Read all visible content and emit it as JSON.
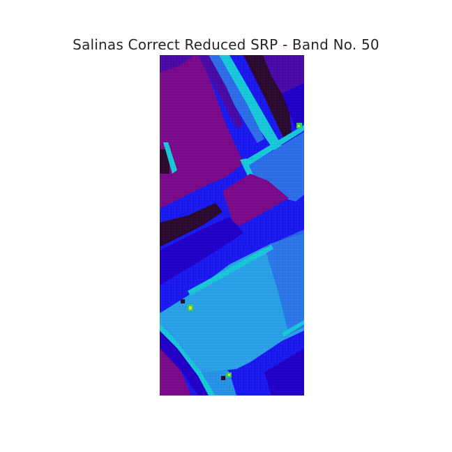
{
  "figure": {
    "title": "Salinas Correct Reduced SRP - Band No. 50"
  },
  "image": {
    "dataset": "Salinas",
    "band_number": 50,
    "colormap": "nipy_spectral",
    "palette": {
      "dark_purple": "#2a0a2e",
      "purple": "#7a0a8a",
      "violet": "#4a0aa5",
      "indigo": "#2200c8",
      "blue": "#1a1aee",
      "mid_blue": "#2d6ee8",
      "light_blue": "#2aa0e6",
      "cyan": "#18c7d8",
      "green": "#2ecf5a",
      "yellow": "#e8e020"
    }
  }
}
